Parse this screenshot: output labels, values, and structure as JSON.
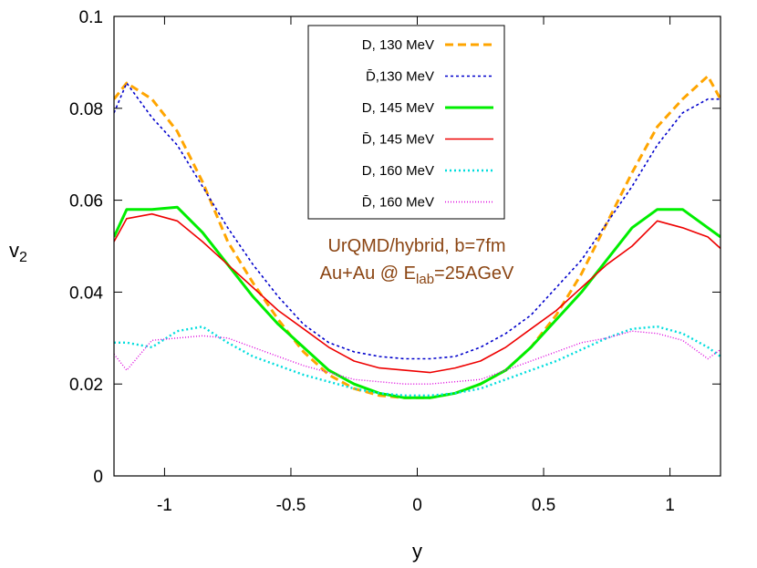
{
  "chart_data": {
    "type": "line",
    "xlabel": "y",
    "ylabel_main": "v",
    "ylabel_sub": "2",
    "xlim": [
      -1.2,
      1.2
    ],
    "ylim": [
      0,
      0.1
    ],
    "xticks": [
      -1,
      -0.5,
      0,
      0.5,
      1
    ],
    "xtick_labels": [
      "-1",
      "-0.5",
      "0",
      "0.5",
      "1"
    ],
    "yticks": [
      0,
      0.02,
      0.04,
      0.06,
      0.08,
      0.1
    ],
    "ytick_labels": [
      "0",
      "0.02",
      "0.04",
      "0.06",
      "0.08",
      "0.1"
    ],
    "grid": false,
    "legend_position": "top-center",
    "annotation": {
      "line1": "UrQMD/hybrid, b=7fm",
      "line2_prefix": "Au+Au @ E",
      "line2_sub": "lab",
      "line2_suffix": "=25AGeV",
      "color": "#8B4513"
    },
    "x": [
      -1.2,
      -1.15,
      -1.05,
      -0.95,
      -0.85,
      -0.75,
      -0.65,
      -0.55,
      -0.45,
      -0.35,
      -0.25,
      -0.15,
      -0.05,
      0.05,
      0.15,
      0.25,
      0.35,
      0.45,
      0.55,
      0.65,
      0.75,
      0.85,
      0.95,
      1.05,
      1.15,
      1.2
    ],
    "series": [
      {
        "name": "D, 130 MeV",
        "color": "#ffa500",
        "dash": "9,5",
        "width": 3,
        "values": [
          0.082,
          0.0855,
          0.082,
          0.075,
          0.064,
          0.051,
          0.042,
          0.034,
          0.027,
          0.022,
          0.019,
          0.0175,
          0.017,
          0.017,
          0.018,
          0.02,
          0.023,
          0.028,
          0.035,
          0.044,
          0.055,
          0.066,
          0.076,
          0.082,
          0.087,
          0.082
        ]
      },
      {
        "name": "D̄,130 MeV",
        "color": "#0000cc",
        "dash": "3,3",
        "width": 1.6,
        "values": [
          0.079,
          0.0855,
          0.078,
          0.072,
          0.063,
          0.054,
          0.046,
          0.039,
          0.033,
          0.029,
          0.027,
          0.026,
          0.0255,
          0.0255,
          0.026,
          0.028,
          0.031,
          0.035,
          0.041,
          0.047,
          0.055,
          0.063,
          0.072,
          0.079,
          0.082,
          0.082
        ]
      },
      {
        "name": "D, 145 MeV",
        "color": "#00ee00",
        "dash": "",
        "width": 3,
        "values": [
          0.052,
          0.058,
          0.058,
          0.0585,
          0.053,
          0.046,
          0.039,
          0.033,
          0.028,
          0.023,
          0.02,
          0.018,
          0.017,
          0.017,
          0.018,
          0.02,
          0.023,
          0.028,
          0.034,
          0.04,
          0.047,
          0.054,
          0.058,
          0.058,
          0.054,
          0.052
        ]
      },
      {
        "name": "D̄, 145 MeV",
        "color": "#ee0000",
        "dash": "",
        "width": 1.6,
        "values": [
          0.051,
          0.056,
          0.057,
          0.0555,
          0.051,
          0.046,
          0.041,
          0.036,
          0.032,
          0.028,
          0.025,
          0.0235,
          0.023,
          0.0225,
          0.0235,
          0.025,
          0.028,
          0.032,
          0.036,
          0.041,
          0.046,
          0.05,
          0.0555,
          0.054,
          0.052,
          0.0495
        ]
      },
      {
        "name": "D, 160 MeV",
        "color": "#00dddd",
        "dash": "2,3",
        "width": 2.4,
        "values": [
          0.029,
          0.029,
          0.028,
          0.0315,
          0.0325,
          0.029,
          0.026,
          0.024,
          0.022,
          0.0205,
          0.019,
          0.018,
          0.0175,
          0.0175,
          0.018,
          0.019,
          0.021,
          0.023,
          0.025,
          0.0275,
          0.03,
          0.032,
          0.0325,
          0.031,
          0.028,
          0.026
        ]
      },
      {
        "name": "D̄, 160 MeV",
        "color": "#dd00dd",
        "dash": "1,2",
        "width": 1.4,
        "values": [
          0.0265,
          0.023,
          0.0295,
          0.03,
          0.0305,
          0.03,
          0.028,
          0.026,
          0.024,
          0.0225,
          0.021,
          0.0205,
          0.02,
          0.02,
          0.0205,
          0.021,
          0.023,
          0.025,
          0.027,
          0.029,
          0.03,
          0.0315,
          0.031,
          0.0295,
          0.0255,
          0.0275
        ]
      }
    ]
  }
}
